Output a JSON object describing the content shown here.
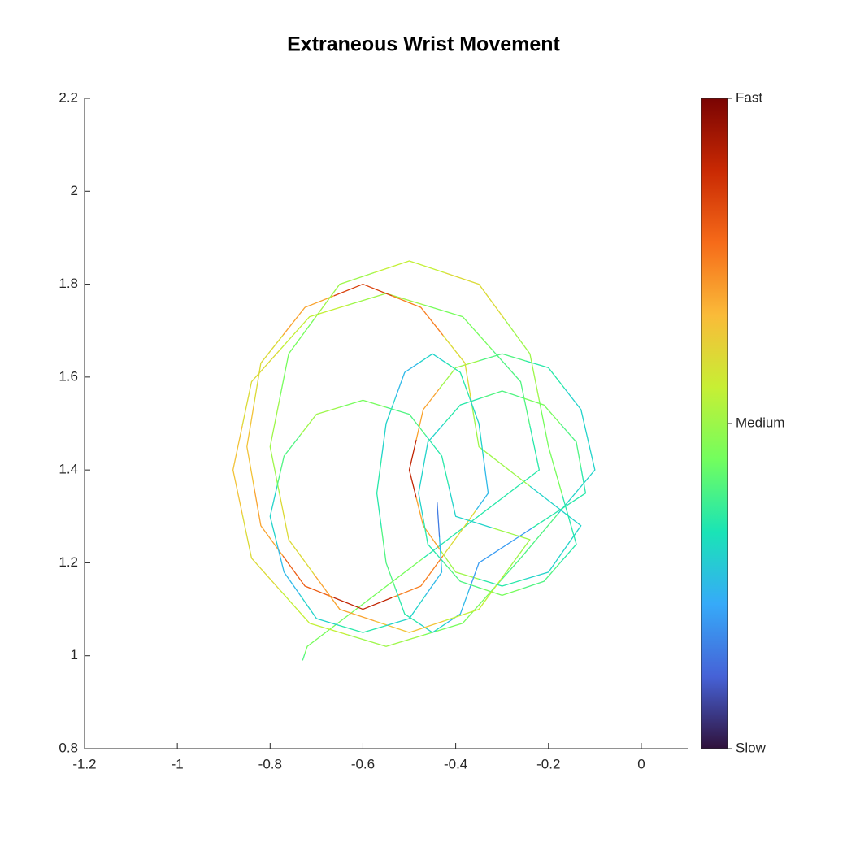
{
  "chart_data": {
    "type": "line",
    "title": "Extraneous Wrist Movement",
    "xlim": [
      -1.2,
      0.1
    ],
    "xticks": [
      -1.2,
      -1,
      -0.8,
      -0.6,
      -0.4,
      -0.2,
      0
    ],
    "ylim": [
      0.8,
      2.2
    ],
    "yticks": [
      0.8,
      1,
      1.2,
      1.4,
      1.6,
      1.8,
      2,
      2.2
    ],
    "clim": [
      0,
      1
    ],
    "cticks": [
      {
        "value": 0,
        "label": "Slow"
      },
      {
        "value": 0.5,
        "label": "Medium"
      },
      {
        "value": 1,
        "label": "Fast"
      }
    ],
    "colormap": [
      "#30123b",
      "#4662d7",
      "#36aaf9",
      "#1ae4b6",
      "#72fe5e",
      "#c7ef34",
      "#fabb39",
      "#f66b19",
      "#c92903",
      "#7a0403"
    ],
    "series": [
      {
        "x": [
          -0.73,
          -0.72,
          -0.22,
          -0.26,
          -0.385,
          -0.55,
          -0.715,
          -0.84,
          -0.88,
          -0.84,
          -0.715,
          -0.55,
          -0.385,
          -0.26,
          -0.1,
          -0.13,
          -0.2,
          -0.3,
          -0.4,
          -0.47,
          -0.5,
          -0.47,
          -0.4,
          -0.3,
          -0.2,
          -0.13,
          -0.35,
          -0.38,
          -0.475,
          -0.6,
          -0.725,
          -0.82,
          -0.85,
          -0.82,
          -0.725,
          -0.6,
          -0.475,
          -0.38,
          -0.33,
          -0.35,
          -0.39,
          -0.45,
          -0.51,
          -0.55,
          -0.57,
          -0.55,
          -0.51,
          -0.45,
          -0.39,
          -0.35,
          -0.12,
          -0.14,
          -0.21,
          -0.3,
          -0.39,
          -0.46,
          -0.48,
          -0.46,
          -0.39,
          -0.3,
          -0.21,
          -0.14,
          -0.2,
          -0.24,
          -0.35,
          -0.5,
          -0.65,
          -0.76,
          -0.8,
          -0.76,
          -0.65,
          -0.5,
          -0.35,
          -0.24,
          -0.4,
          -0.43,
          -0.5,
          -0.6,
          -0.7,
          -0.77,
          -0.8,
          -0.77,
          -0.7,
          -0.6,
          -0.5,
          -0.43,
          -0.44
        ],
        "values": [
          0.99,
          1.02,
          1.4,
          1.59,
          1.73,
          1.78,
          1.73,
          1.59,
          1.4,
          1.21,
          1.07,
          1.02,
          1.07,
          1.21,
          1.4,
          1.53,
          1.62,
          1.65,
          1.62,
          1.53,
          1.4,
          1.28,
          1.18,
          1.15,
          1.18,
          1.28,
          1.45,
          1.63,
          1.75,
          1.8,
          1.75,
          1.63,
          1.45,
          1.28,
          1.15,
          1.1,
          1.15,
          1.28,
          1.35,
          1.5,
          1.61,
          1.65,
          1.61,
          1.5,
          1.35,
          1.2,
          1.09,
          1.05,
          1.09,
          1.2,
          1.35,
          1.46,
          1.54,
          1.57,
          1.54,
          1.46,
          1.35,
          1.24,
          1.16,
          1.13,
          1.16,
          1.24,
          1.45,
          1.65,
          1.8,
          1.85,
          1.8,
          1.65,
          1.45,
          1.25,
          1.1,
          1.05,
          1.1,
          1.25,
          1.3,
          1.43,
          1.52,
          1.55,
          1.52,
          1.43,
          1.3,
          1.18,
          1.08,
          1.05,
          1.08,
          1.18,
          1.33
        ],
        "speed": [
          0.4,
          0.45,
          0.35,
          0.4,
          0.45,
          0.5,
          0.55,
          0.6,
          0.65,
          0.6,
          0.55,
          0.5,
          0.45,
          0.4,
          0.3,
          0.3,
          0.35,
          0.4,
          0.5,
          0.7,
          0.9,
          0.7,
          0.5,
          0.35,
          0.3,
          0.3,
          0.5,
          0.6,
          0.75,
          0.85,
          0.7,
          0.6,
          0.65,
          0.7,
          0.8,
          0.9,
          0.75,
          0.6,
          0.25,
          0.3,
          0.35,
          0.3,
          0.25,
          0.3,
          0.35,
          0.4,
          0.35,
          0.3,
          0.25,
          0.2,
          0.35,
          0.4,
          0.45,
          0.4,
          0.35,
          0.3,
          0.3,
          0.35,
          0.4,
          0.45,
          0.4,
          0.35,
          0.45,
          0.5,
          0.6,
          0.55,
          0.5,
          0.45,
          0.5,
          0.6,
          0.7,
          0.65,
          0.55,
          0.5,
          0.3,
          0.35,
          0.4,
          0.45,
          0.5,
          0.4,
          0.3,
          0.25,
          0.3,
          0.35,
          0.3,
          0.25,
          0.15
        ]
      }
    ]
  }
}
